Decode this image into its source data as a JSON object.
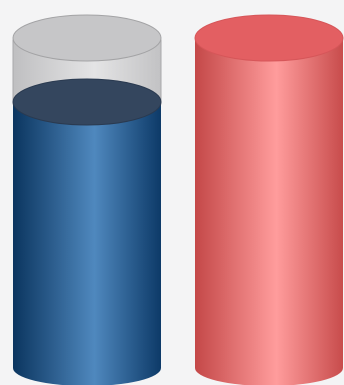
{
  "cylinders": [
    {
      "id": "blue-fill-cylinder",
      "fill_level": 0.82,
      "colors": {
        "empty_body": "#d2d2d4",
        "empty_top": "#c4c4c6",
        "fill_dark": "#0e3a66",
        "fill_mid": "#4a82b8",
        "fill_surface": "#34465e"
      }
    },
    {
      "id": "red-fill-cylinder",
      "fill_level": 1.0,
      "colors": {
        "fill_dark": "#c94b4b",
        "fill_mid": "#ff9a9a",
        "fill_surface": "#e35f62"
      }
    }
  ]
}
